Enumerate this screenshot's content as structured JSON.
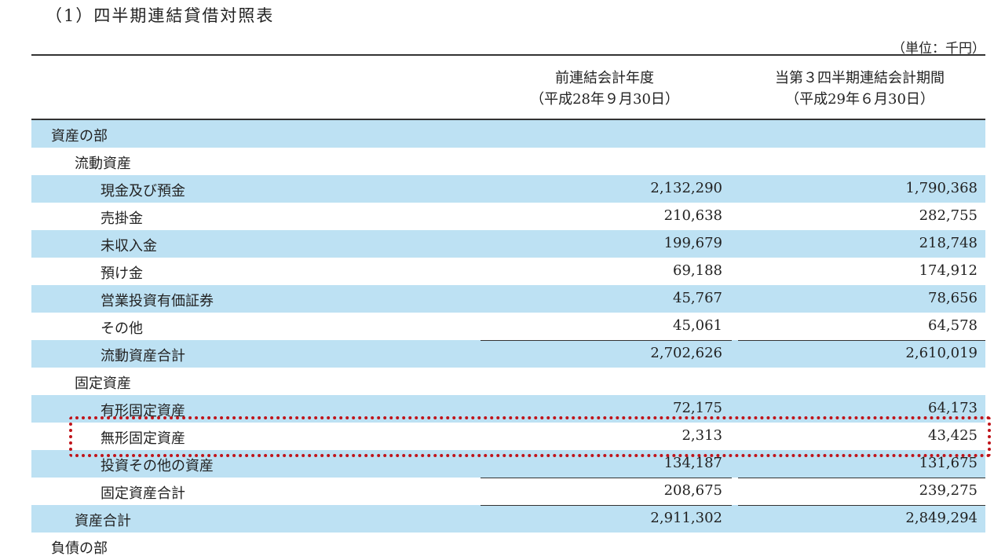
{
  "title": "（1）四半期連結貸借対照表",
  "unit": "（単位：千円）",
  "columns": [
    {
      "name": "前連結会計年度",
      "date": "（平成28年９月30日）"
    },
    {
      "name": "当第３四半期連結会計期間",
      "date": "（平成29年６月30日）"
    }
  ],
  "rows": [
    {
      "label": "資産の部"
    },
    {
      "label": "流動資産"
    },
    {
      "label": "現金及び預金",
      "values": [
        "2,132,290",
        "1,790,368"
      ]
    },
    {
      "label": "売掛金",
      "values": [
        "210,638",
        "282,755"
      ]
    },
    {
      "label": "未収入金",
      "values": [
        "199,679",
        "218,748"
      ]
    },
    {
      "label": "預け金",
      "values": [
        "69,188",
        "174,912"
      ]
    },
    {
      "label": "営業投資有価証券",
      "values": [
        "45,767",
        "78,656"
      ]
    },
    {
      "label": "その他",
      "values": [
        "45,061",
        "64,578"
      ]
    },
    {
      "label": "流動資産合計",
      "values": [
        "2,702,626",
        "2,610,019"
      ]
    },
    {
      "label": "固定資産"
    },
    {
      "label": "有形固定資産",
      "values": [
        "72,175",
        "64,173"
      ]
    },
    {
      "label": "無形固定資産",
      "values": [
        "2,313",
        "43,425"
      ]
    },
    {
      "label": "投資その他の資産",
      "values": [
        "134,187",
        "131,675"
      ]
    },
    {
      "label": "固定資産合計",
      "values": [
        "208,675",
        "239,275"
      ]
    },
    {
      "label": "資産合計",
      "values": [
        "2,911,302",
        "2,849,294"
      ]
    },
    {
      "label": "負債の部"
    }
  ]
}
